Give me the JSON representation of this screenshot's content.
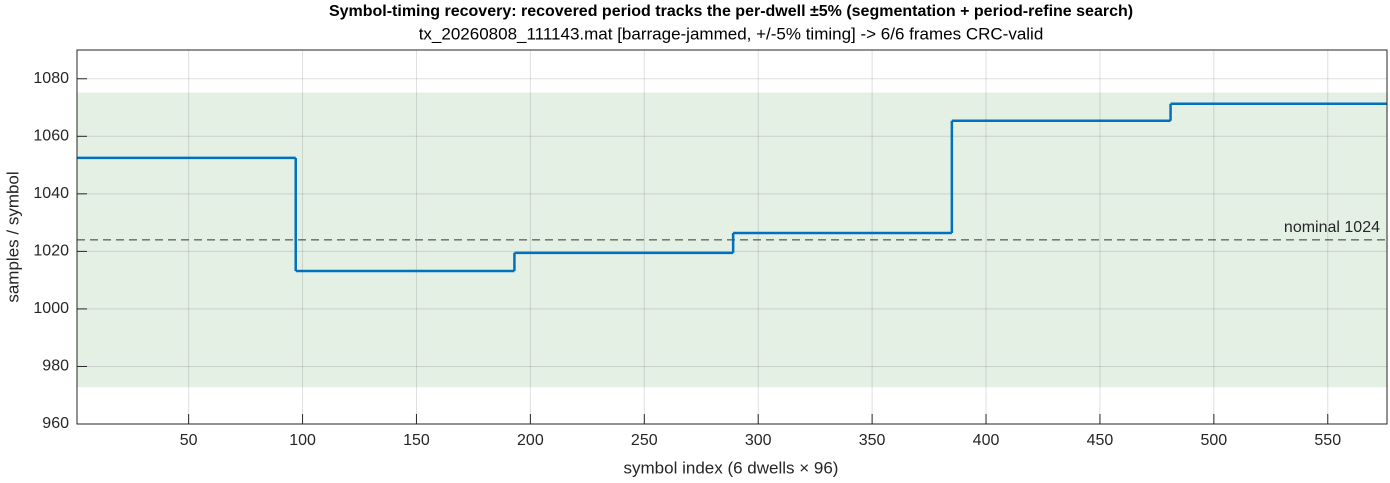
{
  "chart_data": {
    "type": "stairs",
    "title": "Symbol-timing recovery: recovered period tracks the per-dwell ±5% (segmentation + period-refine search)",
    "subtitle": "tx_20260808_111143.mat  [barrage-jammed, +/-5% timing]  ->  6/6 frames CRC-valid",
    "xlabel": "symbol index (6 dwells × 96)",
    "ylabel": "samples / symbol",
    "x": [
      1,
      97,
      193,
      289,
      385,
      481
    ],
    "series": [
      {
        "color": "#0072bd",
        "values": [
          1052.5,
          1013.2,
          1019.5,
          1026.4,
          1065.4,
          1071.3
        ]
      }
    ],
    "band": [
      972.8,
      1075.2
    ],
    "band_color": "#e5f0e5",
    "reference": 1024,
    "reference_label": "nominal 1024",
    "xlim": [
      1,
      576
    ],
    "ylim": [
      960,
      1090
    ],
    "xticks": [
      50,
      100,
      150,
      200,
      250,
      300,
      350,
      400,
      450,
      500,
      550
    ],
    "yticks": [
      960,
      980,
      1000,
      1020,
      1040,
      1060,
      1080
    ],
    "grid": true
  }
}
